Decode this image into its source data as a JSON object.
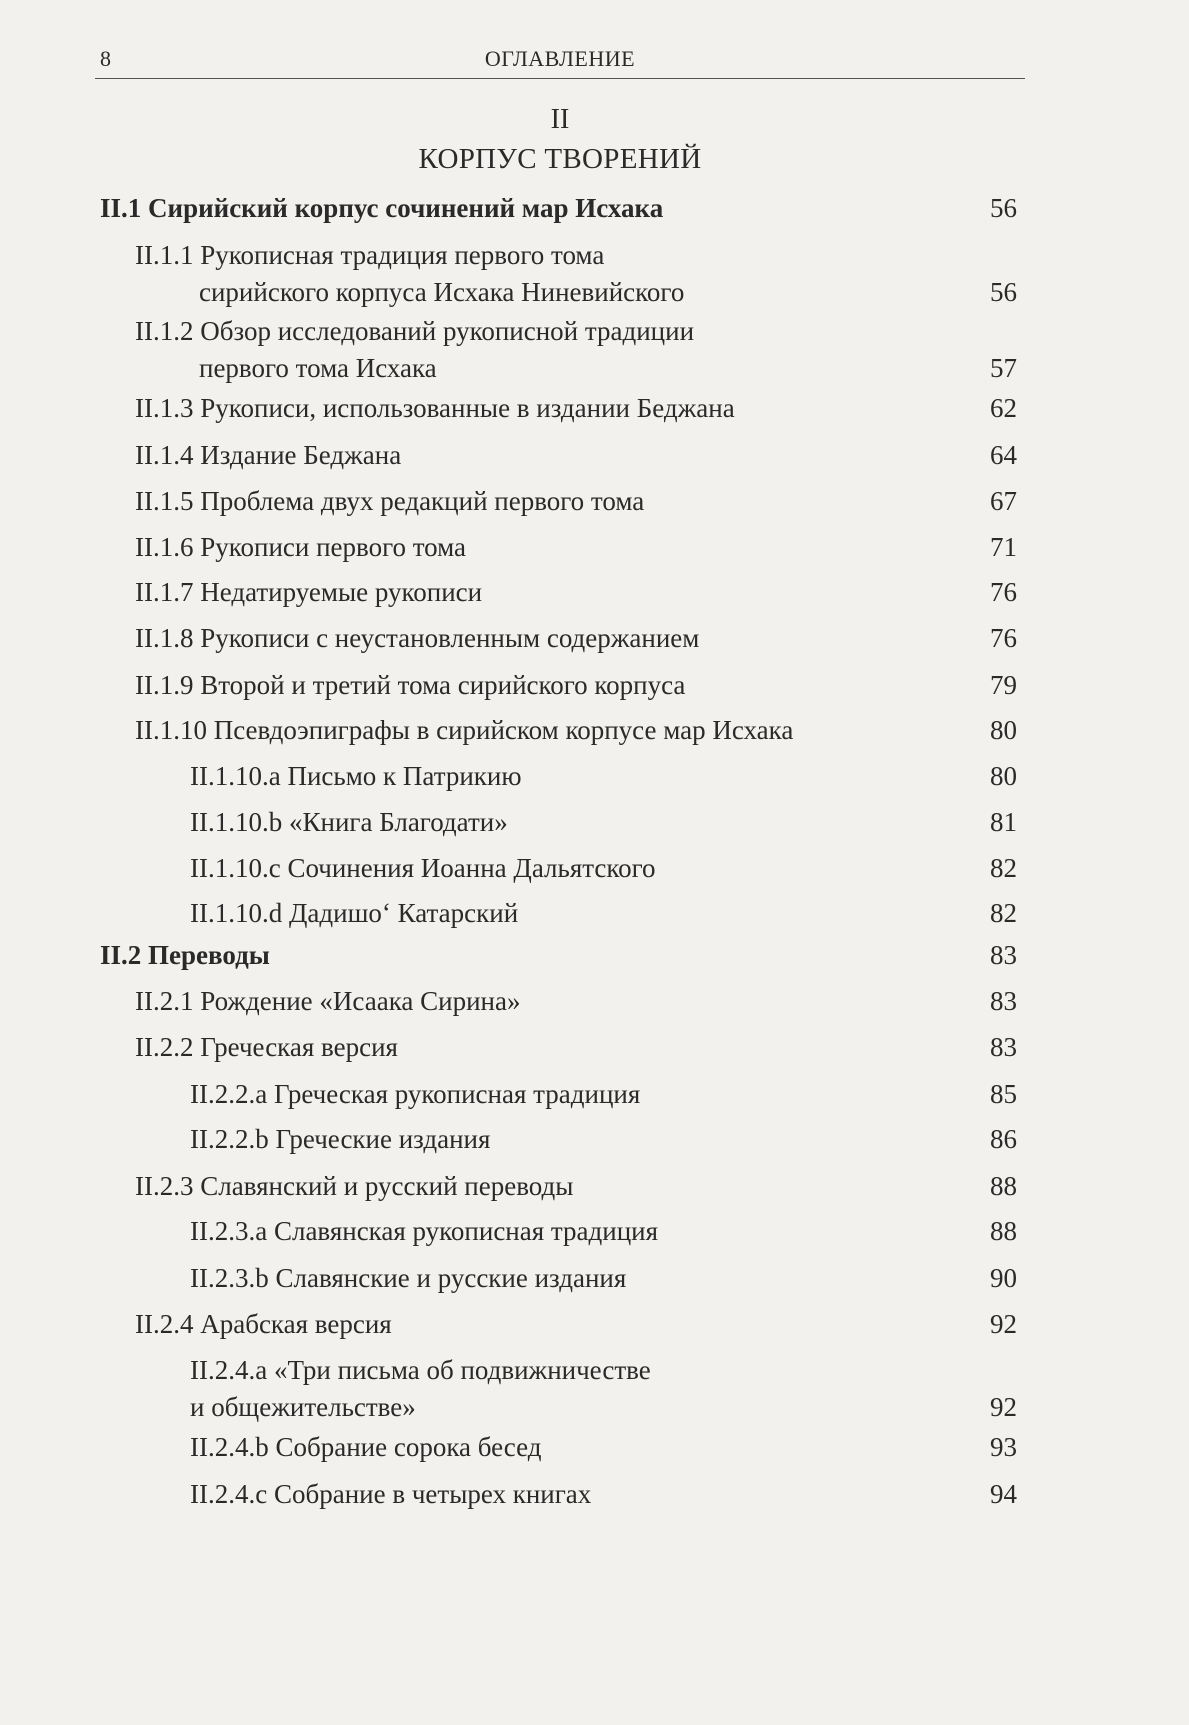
{
  "header": {
    "page_number": "8",
    "running_head": "ОГЛАВЛЕНИЕ"
  },
  "part": {
    "number": "II",
    "title": "КОРПУС ТВОРЕНИЙ"
  },
  "entries": [
    {
      "level": 1,
      "lines": [
        "II.1 Сирийский корпус сочинений мар Исхака"
      ],
      "page": "56"
    },
    {
      "level": 2,
      "lines": [
        "II.1.1  Рукописная традиция первого тома",
        "сирийского корпуса Исхака Ниневийского"
      ],
      "page": "56"
    },
    {
      "level": 2,
      "lines": [
        "II.1.2 Обзор исследований рукописной традиции",
        "первого тома Исхака"
      ],
      "page": "57"
    },
    {
      "level": 2,
      "lines": [
        "II.1.3 Рукописи, использованные в издании Беджана"
      ],
      "page": "62"
    },
    {
      "level": 2,
      "lines": [
        "II.1.4 Издание Беджана"
      ],
      "page": "64"
    },
    {
      "level": 2,
      "lines": [
        "II.1.5 Проблема двух редакций первого тома"
      ],
      "page": "67"
    },
    {
      "level": 2,
      "lines": [
        "II.1.6 Рукописи первого тома"
      ],
      "page": "71"
    },
    {
      "level": 2,
      "lines": [
        "II.1.7 Недатируемые рукописи"
      ],
      "page": "76"
    },
    {
      "level": 2,
      "lines": [
        "II.1.8 Рукописи с неустановленным содержанием"
      ],
      "page": "76"
    },
    {
      "level": 2,
      "lines": [
        "II.1.9 Второй и третий тома сирийского корпуса"
      ],
      "page": "79"
    },
    {
      "level": 2,
      "lines": [
        "II.1.10 Псевдоэпиграфы в сирийском корпусе мар Исхака"
      ],
      "page": "80"
    },
    {
      "level": 3,
      "lines": [
        "II.1.10.a Письмо к Патрикию"
      ],
      "page": "80"
    },
    {
      "level": 3,
      "lines": [
        "II.1.10.b «Книга Благодати»"
      ],
      "page": "81"
    },
    {
      "level": 3,
      "lines": [
        "II.1.10.c Сочинения Иоанна Дальятского"
      ],
      "page": "82"
    },
    {
      "level": 3,
      "lines": [
        "II.1.10.d Дадишо‘ Катарский"
      ],
      "page": "82"
    },
    {
      "level": 1,
      "lines": [
        "II.2 Переводы"
      ],
      "page": "83"
    },
    {
      "level": 2,
      "lines": [
        "II.2.1 Рождение «Исаака Сирина»"
      ],
      "page": "83"
    },
    {
      "level": 2,
      "lines": [
        "II.2.2 Греческая версия"
      ],
      "page": "83"
    },
    {
      "level": 3,
      "lines": [
        "II.2.2.a Греческая рукописная традиция"
      ],
      "page": "85"
    },
    {
      "level": 3,
      "lines": [
        "II.2.2.b Греческие издания"
      ],
      "page": "86"
    },
    {
      "level": 2,
      "lines": [
        "II.2.3 Славянский и русский переводы"
      ],
      "page": "88"
    },
    {
      "level": 3,
      "lines": [
        "II.2.3.a Славянская рукописная традиция"
      ],
      "page": "88"
    },
    {
      "level": 3,
      "lines": [
        "II.2.3.b Славянские и русские издания"
      ],
      "page": "90"
    },
    {
      "level": 2,
      "lines": [
        "II.2.4 Арабская версия"
      ],
      "page": "92"
    },
    {
      "level": 3,
      "lines": [
        "II.2.4.a «Три письма об подвижничестве",
        "и общежительстве»"
      ],
      "page": "92"
    },
    {
      "level": 3,
      "lines": [
        "II.2.4.b Собрание сорока бесед"
      ],
      "page": "93"
    },
    {
      "level": 3,
      "lines": [
        "II.2.4.c Собрание в четырех книгах"
      ],
      "page": "94"
    }
  ]
}
